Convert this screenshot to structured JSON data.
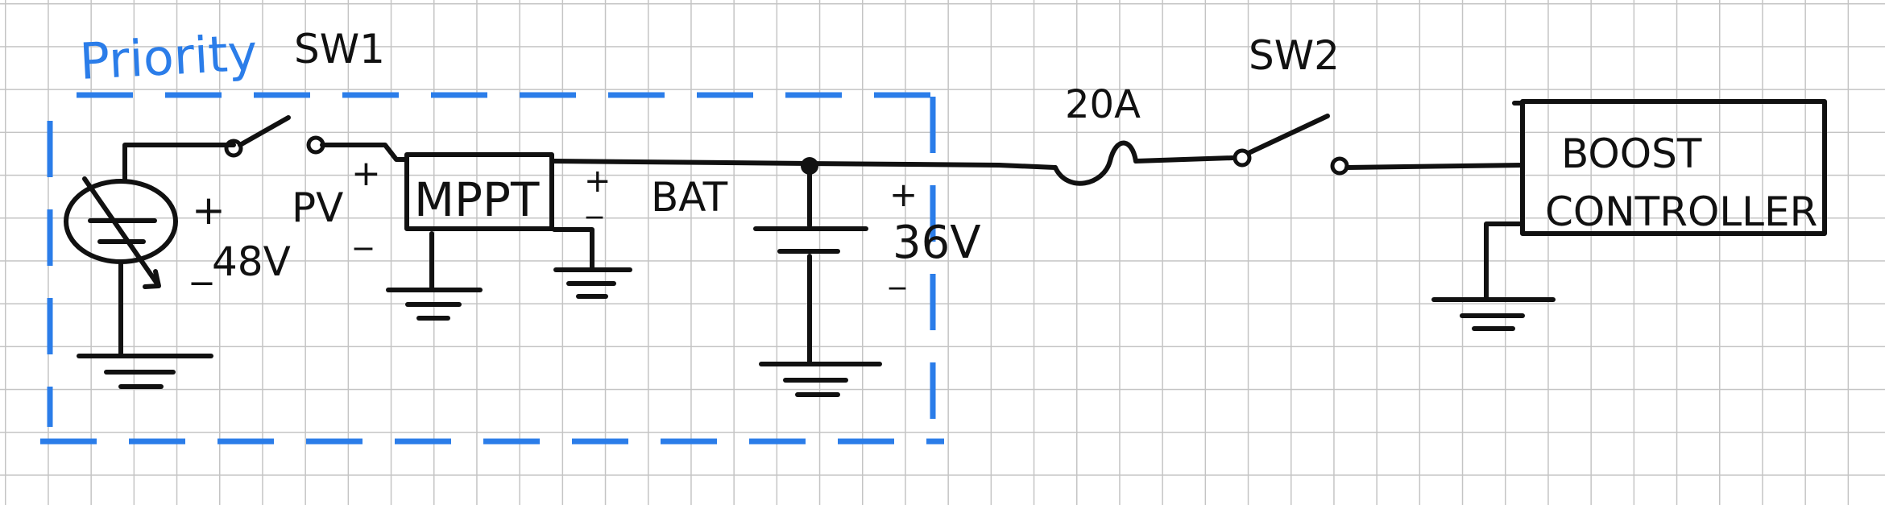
{
  "labels": {
    "priority": "Priority",
    "sw1": "SW1",
    "sw2": "SW2",
    "pv": "PV",
    "pv_plus": "+",
    "pv_minus": "_",
    "mppt": "MPPT",
    "bat": "BAT",
    "bat_plus": "+",
    "bat_minus": "_",
    "src_plus": "+",
    "src_voltage": "_48V",
    "cap_plus": "+",
    "cap_voltage": "36V",
    "cap_minus": "_",
    "fuse": "20A",
    "boost_line1": "BOOST",
    "boost_line2": "CONTROLLER"
  },
  "colors": {
    "grid": "#c4c4c4",
    "ink": "#111111",
    "priority": "#2b7de9"
  }
}
